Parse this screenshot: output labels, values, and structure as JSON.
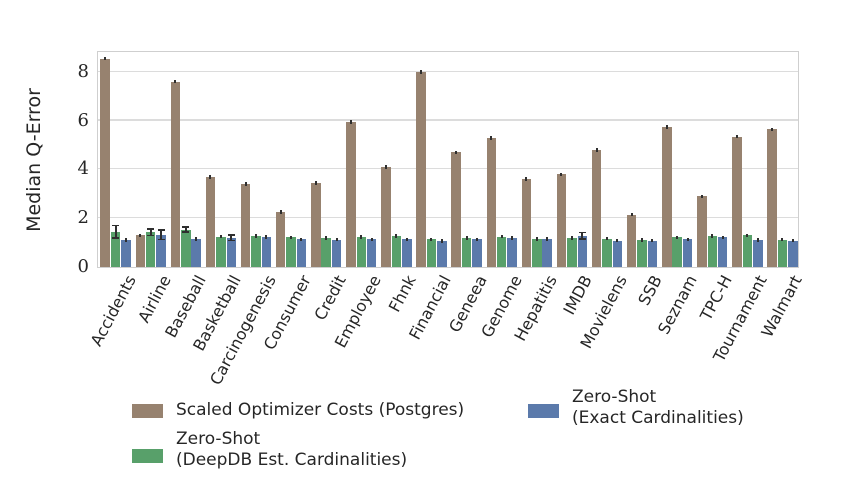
{
  "figure": {
    "background": "#ffffff",
    "grid_color": "#dcdcdc",
    "frame_color": "#cfcfcf",
    "errorbar_color": "#2f2f2f"
  },
  "chart_data": {
    "type": "bar",
    "title": "",
    "xlabel": "",
    "ylabel": "Median Q-Error",
    "ylim": [
      0,
      8.9
    ],
    "yticks": [
      0,
      2,
      4,
      6,
      8
    ],
    "grid": true,
    "legend_position": "bottom",
    "x_tick_rotation_deg": 62,
    "categories": [
      "Accidents",
      "Airline",
      "Baseball",
      "Basketball",
      "Carcinogenesis",
      "Consumer",
      "Credit",
      "Employee",
      "Fhnk",
      "Financial",
      "Geneea",
      "Genome",
      "Hepatitis",
      "IMDB",
      "Movielens",
      "SSB",
      "Seznam",
      "TPC-H",
      "Tournament",
      "Walmart"
    ],
    "series": [
      {
        "name": "Scaled Optimizer Costs (Postgres)",
        "color": "#97826f",
        "values": [
          8.55,
          1.3,
          7.6,
          3.7,
          3.4,
          2.25,
          3.45,
          5.95,
          4.1,
          8.0,
          4.7,
          5.3,
          3.6,
          3.8,
          4.8,
          2.15,
          5.75,
          2.9,
          5.35,
          5.65
        ],
        "errors": [
          0.07,
          0.04,
          0.06,
          0.05,
          0.05,
          0.05,
          0.04,
          0.05,
          0.06,
          0.05,
          0.05,
          0.04,
          0.05,
          0.04,
          0.04,
          0.06,
          0.04,
          0.05,
          0.05,
          0.04
        ]
      },
      {
        "name": "Zero-Shot (DeepDB Est. Cardinalities)",
        "color": "#58a06a",
        "values": [
          1.45,
          1.42,
          1.53,
          1.25,
          1.27,
          1.22,
          1.2,
          1.23,
          1.27,
          1.13,
          1.18,
          1.25,
          1.15,
          1.19,
          1.16,
          1.1,
          1.22,
          1.27,
          1.3,
          1.12
        ],
        "errors": [
          0.25,
          0.13,
          0.1,
          0.05,
          0.05,
          0.04,
          0.04,
          0.06,
          0.05,
          0.03,
          0.04,
          0.04,
          0.03,
          0.04,
          0.04,
          0.03,
          0.04,
          0.06,
          0.07,
          0.04
        ]
      },
      {
        "name": "Zero-Shot (Exact Cardinalities)",
        "color": "#5b7aab",
        "values": [
          1.1,
          1.33,
          1.15,
          1.2,
          1.22,
          1.13,
          1.12,
          1.13,
          1.13,
          1.07,
          1.13,
          1.18,
          1.15,
          1.28,
          1.08,
          1.08,
          1.13,
          1.22,
          1.1,
          1.08
        ],
        "errors": [
          0.04,
          0.2,
          0.04,
          0.12,
          0.09,
          0.04,
          0.03,
          0.04,
          0.03,
          0.03,
          0.03,
          0.04,
          0.04,
          0.14,
          0.03,
          0.03,
          0.04,
          0.05,
          0.04,
          0.03
        ]
      }
    ]
  },
  "legend": {
    "items": [
      {
        "label_lines": [
          "Scaled Optimizer Costs (Postgres)"
        ],
        "color": "#97826f"
      },
      {
        "label_lines": [
          "Zero-Shot",
          "(DeepDB Est. Cardinalities)"
        ],
        "color": "#58a06a"
      },
      {
        "label_lines": [
          "Zero-Shot",
          "(Exact Cardinalities)"
        ],
        "color": "#5b7aab"
      }
    ]
  }
}
